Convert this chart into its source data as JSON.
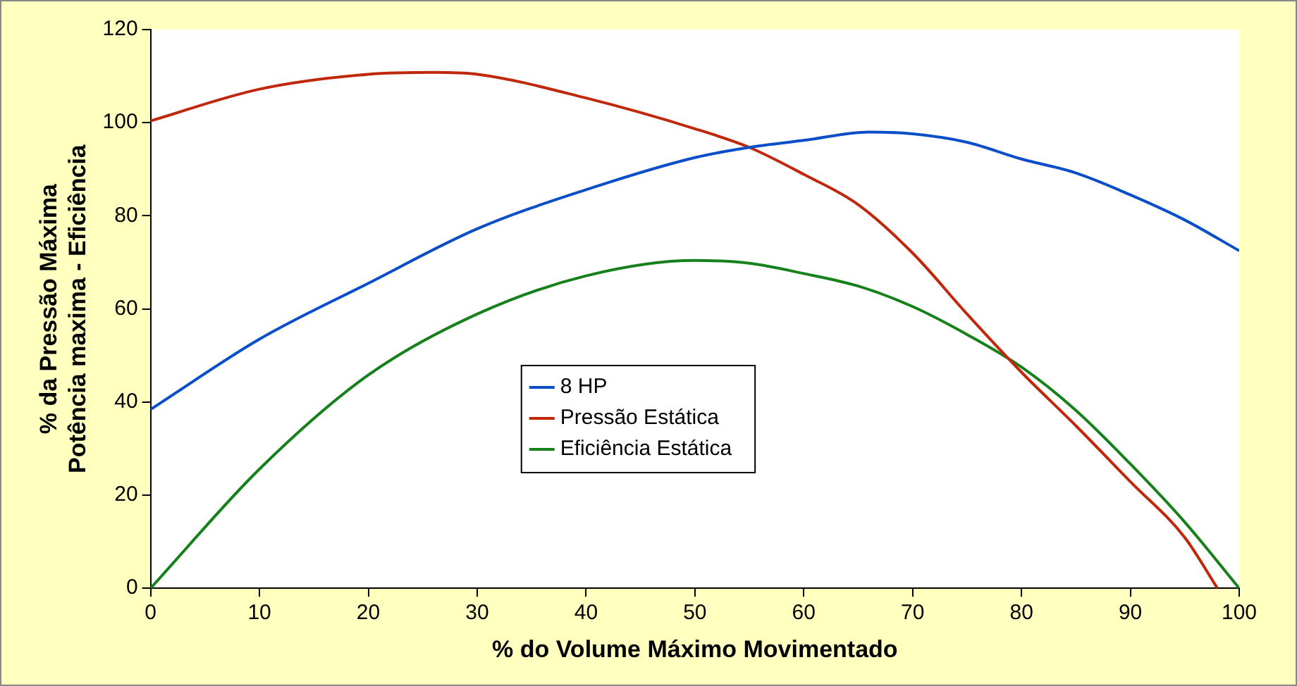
{
  "chart_data": {
    "type": "line",
    "xlabel": "% do Volume Máximo Movimentado",
    "ylabel": "% da Pressão Máxima\nPotência maxima - Eficiência",
    "xlim": [
      0,
      100
    ],
    "xticks": [
      0,
      10,
      20,
      30,
      40,
      50,
      60,
      70,
      80,
      90,
      100
    ],
    "ylim": [
      0,
      120
    ],
    "yticks": [
      0,
      20,
      40,
      60,
      80,
      100,
      120
    ],
    "grid": false,
    "legend": "center",
    "marker": "none",
    "line_style": "solid",
    "series": [
      {
        "name": "8 HP",
        "color": "#0a4fc8",
        "x": [
          0,
          10,
          20,
          30,
          40,
          50,
          55,
          60,
          66,
          70,
          75,
          80,
          85,
          90,
          95,
          100
        ],
        "values": [
          38.4,
          53.5,
          65.5,
          77.2,
          85.6,
          92.5,
          94.7,
          96.2,
          98,
          97.6,
          95.8,
          92.2,
          89.2,
          84.5,
          79.1,
          72.5
        ]
      },
      {
        "name": "Pressão Estática",
        "color": "#c0280c",
        "x": [
          0,
          10,
          20,
          26,
          30,
          40,
          50,
          55,
          60,
          65,
          70,
          75,
          80,
          85,
          90,
          95,
          98
        ],
        "values": [
          100.4,
          107.2,
          110.4,
          110.8,
          110.4,
          105.3,
          98.7,
          94.7,
          88.9,
          82.4,
          72,
          58.9,
          46.4,
          34.9,
          22.9,
          10.9,
          0
        ]
      },
      {
        "name": "Eficiência Estática",
        "color": "#16801a",
        "x": [
          0,
          10,
          20,
          30,
          40,
          50,
          55,
          60,
          65,
          70,
          75,
          80,
          85,
          90,
          95,
          100
        ],
        "values": [
          0,
          25.6,
          45.8,
          58.9,
          67.1,
          70.4,
          69.8,
          67.6,
          64.9,
          60.5,
          54.5,
          47.5,
          38.2,
          26.7,
          14.2,
          0
        ]
      }
    ]
  }
}
